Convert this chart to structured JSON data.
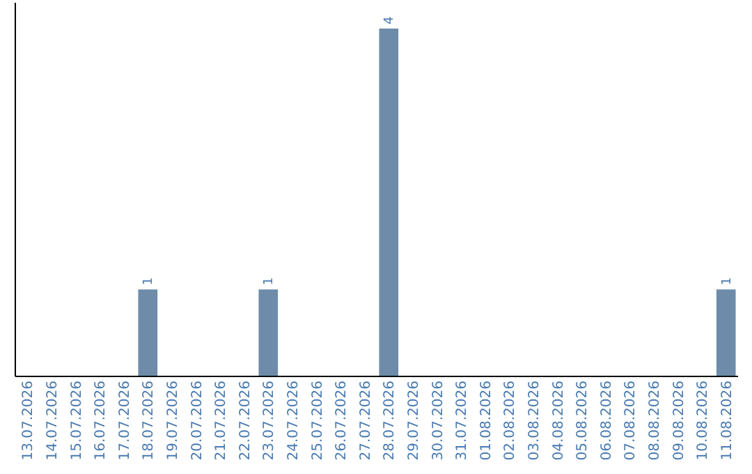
{
  "chart_data": {
    "type": "bar",
    "categories": [
      "13.07.2026",
      "14.07.2026",
      "15.07.2026",
      "16.07.2026",
      "17.07.2026",
      "18.07.2026",
      "19.07.2026",
      "20.07.2026",
      "21.07.2026",
      "22.07.2026",
      "23.07.2026",
      "24.07.2026",
      "25.07.2026",
      "26.07.2026",
      "27.07.2026",
      "28.07.2026",
      "29.07.2026",
      "30.07.2026",
      "31.07.2026",
      "01.08.2026",
      "02.08.2026",
      "03.08.2026",
      "04.08.2026",
      "05.08.2026",
      "06.08.2026",
      "07.08.2026",
      "08.08.2026",
      "09.08.2026",
      "10.08.2026",
      "11.08.2026"
    ],
    "values": [
      0,
      0,
      0,
      0,
      0,
      1,
      0,
      0,
      0,
      0,
      1,
      0,
      0,
      0,
      0,
      4,
      0,
      0,
      0,
      0,
      0,
      0,
      0,
      0,
      0,
      0,
      0,
      0,
      0,
      1
    ],
    "value_labels": [
      null,
      null,
      null,
      null,
      null,
      "1",
      null,
      null,
      null,
      null,
      "1",
      null,
      null,
      null,
      null,
      "4",
      null,
      null,
      null,
      null,
      null,
      null,
      null,
      null,
      null,
      null,
      null,
      null,
      null,
      "1"
    ],
    "color": "#6e8caa"
  }
}
